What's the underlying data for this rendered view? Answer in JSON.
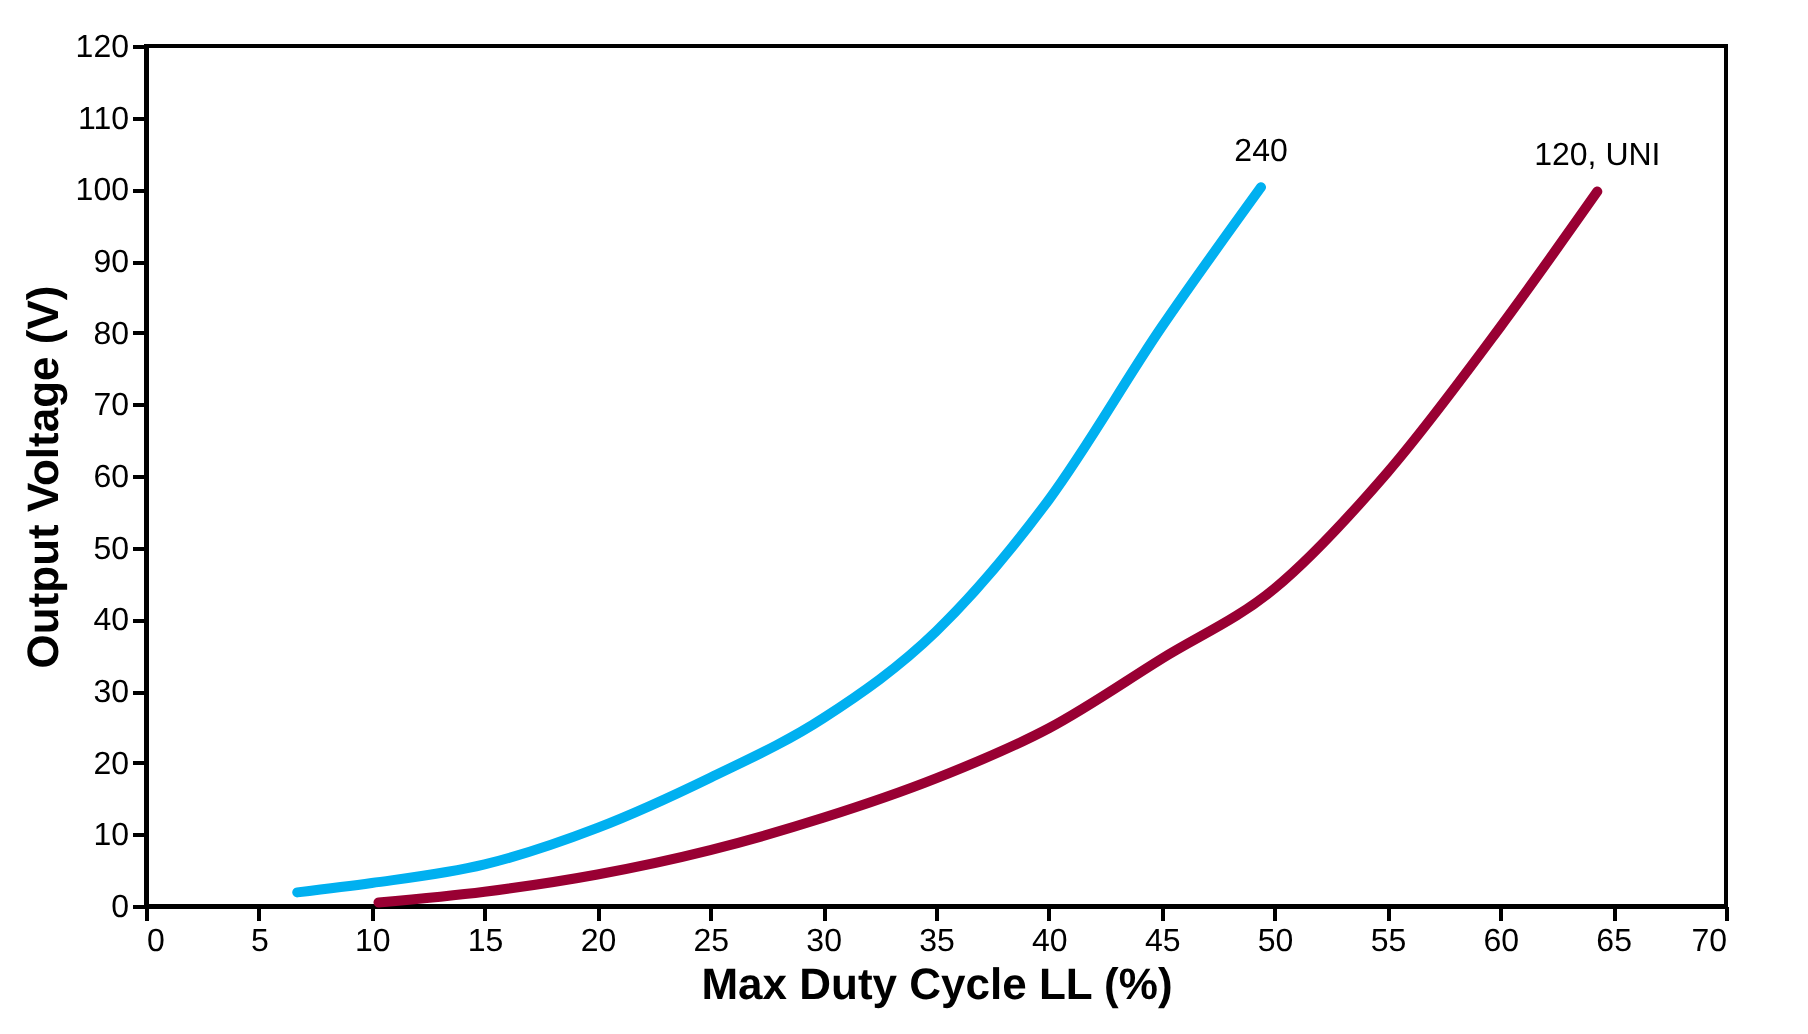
{
  "chart_data": {
    "type": "line",
    "xlabel": "Max Duty Cycle LL (%)",
    "ylabel": "Output Voltage (V)",
    "xlim": [
      0,
      70
    ],
    "xticks": [
      0,
      5,
      10,
      15,
      20,
      25,
      30,
      35,
      40,
      45,
      50,
      55,
      60,
      65,
      70
    ],
    "ylim": [
      0,
      120
    ],
    "yticks": [
      0,
      10,
      20,
      30,
      40,
      50,
      60,
      70,
      80,
      90,
      100,
      110,
      120
    ],
    "grid": false,
    "legend": false,
    "marker": "none",
    "line_style": "solid",
    "series": [
      {
        "name": "240",
        "color": "#00b0f0",
        "x": [
          6.7,
          10,
          15,
          20,
          25,
          30,
          35,
          40,
          45,
          49.4
        ],
        "values": [
          1.9,
          3.2,
          5.8,
          10.9,
          17.9,
          26.2,
          38.3,
          56.7,
          80.8,
          100.3
        ]
      },
      {
        "name": "120, UNI",
        "color": "#990033",
        "x": [
          10.3,
          15,
          20,
          25,
          30,
          35,
          40,
          45,
          50,
          55,
          60,
          64.3
        ],
        "values": [
          0.5,
          2,
          4.4,
          7.8,
          12.3,
          17.8,
          24.8,
          34.5,
          44.3,
          60.5,
          80.8,
          99.7
        ]
      }
    ]
  }
}
